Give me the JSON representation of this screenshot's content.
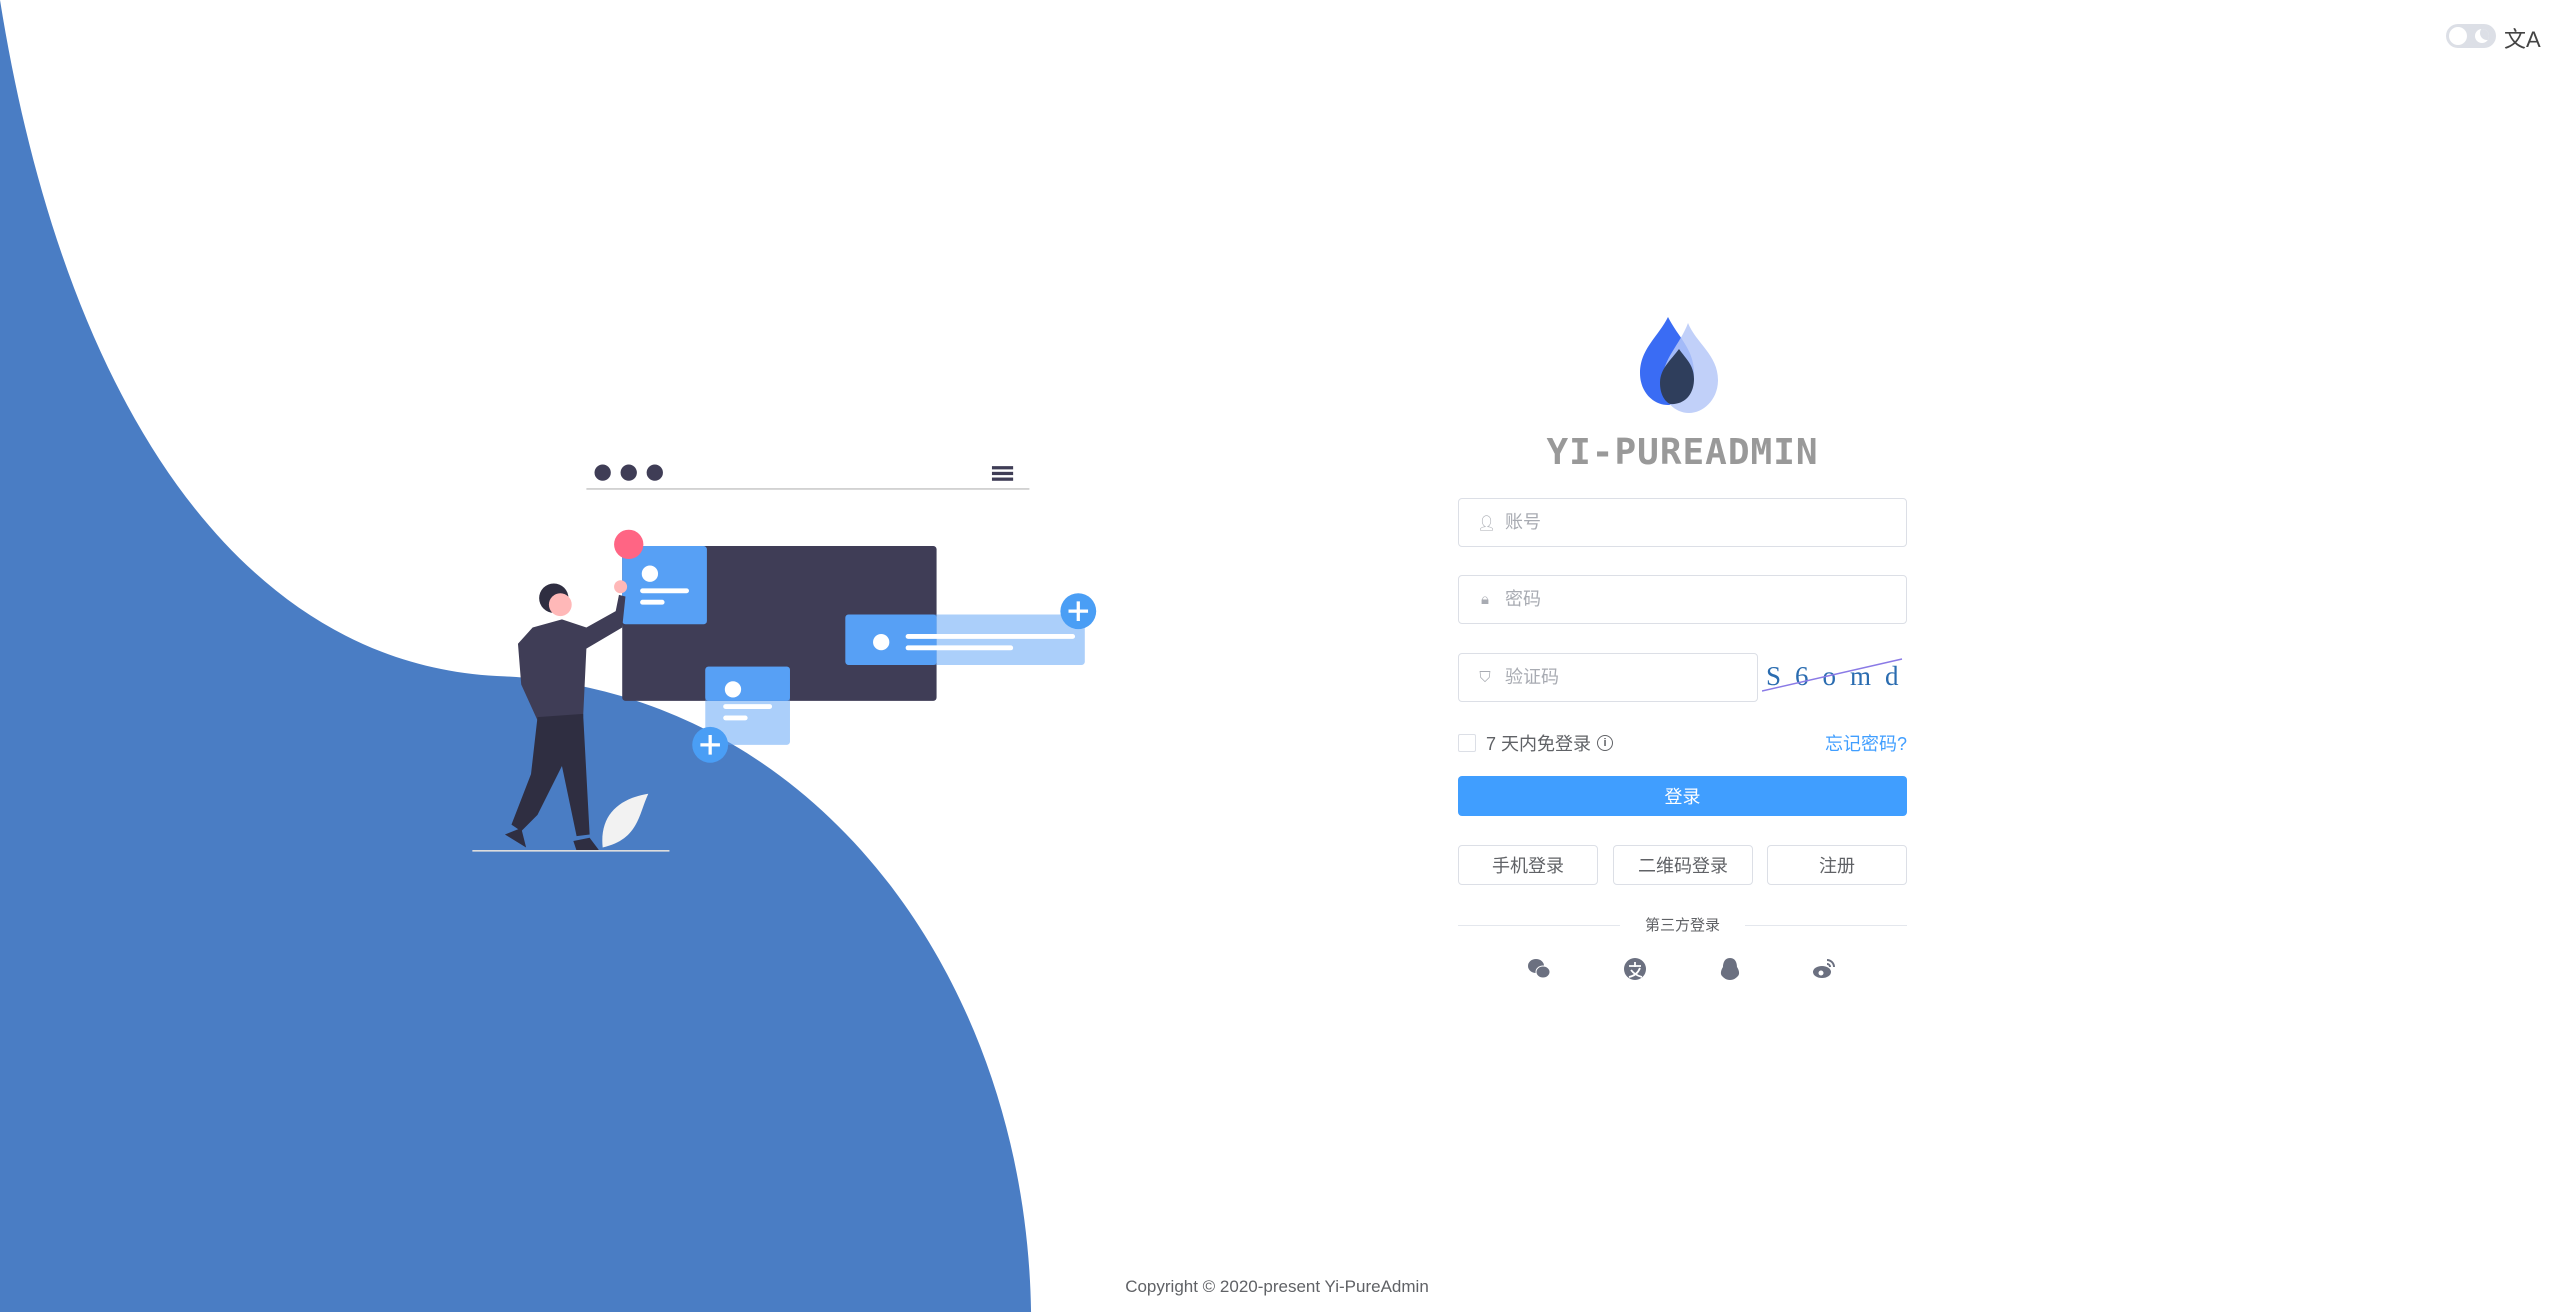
{
  "header": {
    "theme_toggle": "dark-mode-toggle",
    "lang_icon": "translate-icon",
    "lang_glyph": "文A"
  },
  "brand": {
    "title": "YI-PUREADMIN"
  },
  "form": {
    "username": {
      "placeholder": "账号",
      "value": ""
    },
    "password": {
      "placeholder": "密码",
      "value": ""
    },
    "captcha": {
      "placeholder": "验证码",
      "value": "",
      "image_text": "S6omd"
    },
    "remember_label": "7 天内免登录",
    "forgot_label": "忘记密码?",
    "login_label": "登录",
    "alt_buttons": [
      "手机登录",
      "二维码登录",
      "注册"
    ],
    "third_party_label": "第三方登录",
    "third_party_icons": [
      "wechat-icon",
      "alipay-icon",
      "qq-icon",
      "weibo-icon"
    ]
  },
  "footer": {
    "copyright": "Copyright © 2020-present Yi-PureAdmin"
  },
  "colors": {
    "primary": "#409eff",
    "wave": "#4a7dc4",
    "dark": "#3f3d56"
  }
}
